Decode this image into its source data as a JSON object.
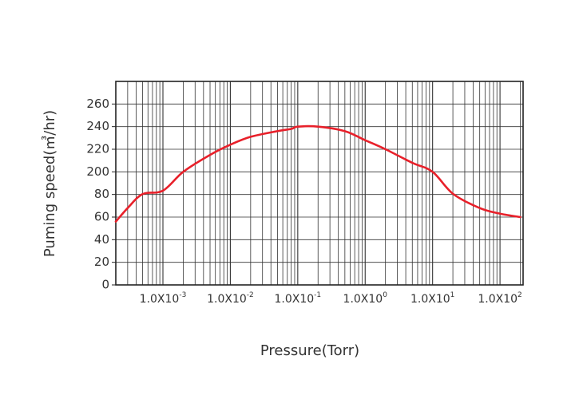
{
  "chart_data": {
    "type": "line",
    "title": "",
    "xlabel": "Pressure(Torr)",
    "ylabel": "Puming speed(㎥/hr)",
    "x_scale": "log",
    "xlim": [
      0.0002,
      220
    ],
    "x_ticks": [
      {
        "value": 0.001,
        "mantissa": "1.0X10",
        "exponent": "-3"
      },
      {
        "value": 0.01,
        "mantissa": "1.0X10",
        "exponent": "-2"
      },
      {
        "value": 0.1,
        "mantissa": "1.0X10",
        "exponent": "-1"
      },
      {
        "value": 1,
        "mantissa": "1.0X10",
        "exponent": "0"
      },
      {
        "value": 10,
        "mantissa": "1.0X10",
        "exponent": "1"
      },
      {
        "value": 100,
        "mantissa": "1.0X10",
        "exponent": "2"
      }
    ],
    "y_ticks": [
      "0",
      "20",
      "40",
      "60",
      "80",
      "200",
      "220",
      "240",
      "260"
    ],
    "grid": true,
    "legend": "none",
    "series": [
      {
        "color": "#e8202a",
        "x": [
          0.0002,
          0.0003,
          0.0005,
          0.001,
          0.002,
          0.005,
          0.01,
          0.02,
          0.05,
          0.08,
          0.1,
          0.2,
          0.5,
          1,
          2,
          5,
          10,
          20,
          50,
          100,
          200
        ],
        "y": [
          56,
          68,
          82,
          100,
          200,
          215,
          224,
          231,
          236,
          238,
          240,
          240,
          236,
          228,
          220,
          208,
          200,
          84,
          68,
          63,
          60
        ]
      }
    ]
  }
}
